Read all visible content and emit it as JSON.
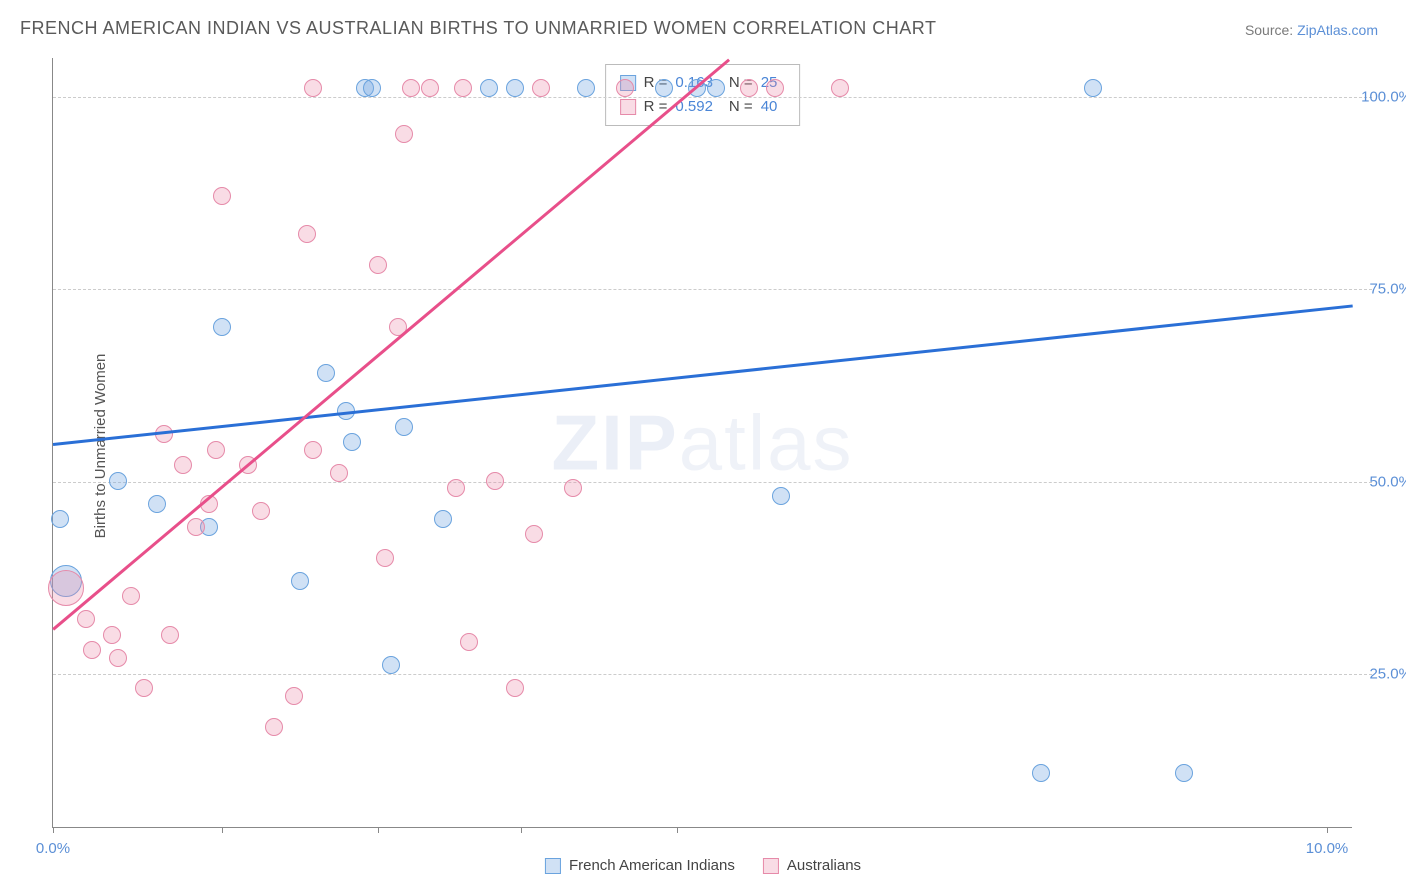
{
  "chart": {
    "type": "scatter",
    "title": "FRENCH AMERICAN INDIAN VS AUSTRALIAN BIRTHS TO UNMARRIED WOMEN CORRELATION CHART",
    "source_prefix": "Source: ",
    "source_link": "ZipAtlas.com",
    "ylabel": "Births to Unmarried Women",
    "watermark_a": "ZIP",
    "watermark_b": "atlas",
    "background_color": "#ffffff",
    "grid_color": "#cccccc",
    "axis_color": "#888888",
    "tick_label_color": "#5b8fd6",
    "title_color": "#5a5a5a",
    "title_fontsize": 18,
    "label_fontsize": 15,
    "xlim": [
      0,
      10
    ],
    "ylim": [
      5,
      105
    ],
    "x_ticks": [
      0,
      1.3,
      2.5,
      3.6,
      4.8,
      9.8
    ],
    "x_tick_labels": {
      "0": "0.0%",
      "9.8": "10.0%"
    },
    "y_gridlines": [
      25,
      50,
      75,
      100
    ],
    "y_tick_labels": {
      "25": "25.0%",
      "50": "50.0%",
      "75": "75.0%",
      "100": "100.0%"
    },
    "series": [
      {
        "key": "blue",
        "name": "French American Indians",
        "fill": "rgba(120,170,225,0.35)",
        "stroke": "#6aa3de",
        "trend_color": "#2a6fd6",
        "R_label": "R =",
        "R": "0.163",
        "N_label": "N =",
        "N": "25",
        "trend": {
          "x1": 0,
          "y1": 55,
          "x2": 10,
          "y2": 73
        },
        "marker_radius": 9,
        "points": [
          {
            "x": 0.05,
            "y": 45
          },
          {
            "x": 0.1,
            "y": 37,
            "r": 16
          },
          {
            "x": 0.5,
            "y": 50
          },
          {
            "x": 0.8,
            "y": 47
          },
          {
            "x": 1.2,
            "y": 44
          },
          {
            "x": 1.3,
            "y": 70
          },
          {
            "x": 1.9,
            "y": 37
          },
          {
            "x": 2.1,
            "y": 64
          },
          {
            "x": 2.25,
            "y": 59
          },
          {
            "x": 2.3,
            "y": 55
          },
          {
            "x": 2.4,
            "y": 101
          },
          {
            "x": 2.45,
            "y": 101
          },
          {
            "x": 2.6,
            "y": 26
          },
          {
            "x": 2.7,
            "y": 57
          },
          {
            "x": 3.0,
            "y": 45
          },
          {
            "x": 3.35,
            "y": 101
          },
          {
            "x": 3.55,
            "y": 101
          },
          {
            "x": 4.1,
            "y": 101
          },
          {
            "x": 4.7,
            "y": 101
          },
          {
            "x": 4.95,
            "y": 101
          },
          {
            "x": 5.1,
            "y": 101
          },
          {
            "x": 5.6,
            "y": 48
          },
          {
            "x": 7.6,
            "y": 12
          },
          {
            "x": 8.0,
            "y": 101
          },
          {
            "x": 8.7,
            "y": 12
          }
        ]
      },
      {
        "key": "pink",
        "name": "Australians",
        "fill": "rgba(235,140,170,0.3)",
        "stroke": "#e68aa9",
        "trend_color": "#e84f8a",
        "R_label": "R =",
        "R": "0.592",
        "N_label": "N =",
        "N": "40",
        "trend": {
          "x1": 0,
          "y1": 31,
          "x2": 5.2,
          "y2": 105
        },
        "marker_radius": 9,
        "points": [
          {
            "x": 0.1,
            "y": 36,
            "r": 18
          },
          {
            "x": 0.25,
            "y": 32
          },
          {
            "x": 0.3,
            "y": 28
          },
          {
            "x": 0.45,
            "y": 30
          },
          {
            "x": 0.5,
            "y": 27
          },
          {
            "x": 0.6,
            "y": 35
          },
          {
            "x": 0.7,
            "y": 23
          },
          {
            "x": 0.85,
            "y": 56
          },
          {
            "x": 0.9,
            "y": 30
          },
          {
            "x": 1.0,
            "y": 52
          },
          {
            "x": 1.1,
            "y": 44
          },
          {
            "x": 1.2,
            "y": 47
          },
          {
            "x": 1.25,
            "y": 54
          },
          {
            "x": 1.3,
            "y": 87
          },
          {
            "x": 1.5,
            "y": 52
          },
          {
            "x": 1.6,
            "y": 46
          },
          {
            "x": 1.7,
            "y": 18
          },
          {
            "x": 1.85,
            "y": 22
          },
          {
            "x": 1.95,
            "y": 82
          },
          {
            "x": 2.0,
            "y": 54
          },
          {
            "x": 2.0,
            "y": 101
          },
          {
            "x": 2.2,
            "y": 51
          },
          {
            "x": 2.5,
            "y": 78
          },
          {
            "x": 2.55,
            "y": 40
          },
          {
            "x": 2.65,
            "y": 70
          },
          {
            "x": 2.7,
            "y": 95
          },
          {
            "x": 2.75,
            "y": 101
          },
          {
            "x": 2.9,
            "y": 101
          },
          {
            "x": 3.1,
            "y": 49
          },
          {
            "x": 3.15,
            "y": 101
          },
          {
            "x": 3.2,
            "y": 29
          },
          {
            "x": 3.4,
            "y": 50
          },
          {
            "x": 3.55,
            "y": 23
          },
          {
            "x": 3.7,
            "y": 43
          },
          {
            "x": 3.75,
            "y": 101
          },
          {
            "x": 4.0,
            "y": 49
          },
          {
            "x": 4.4,
            "y": 101
          },
          {
            "x": 5.35,
            "y": 101
          },
          {
            "x": 5.55,
            "y": 101
          },
          {
            "x": 6.05,
            "y": 101
          }
        ]
      }
    ]
  }
}
